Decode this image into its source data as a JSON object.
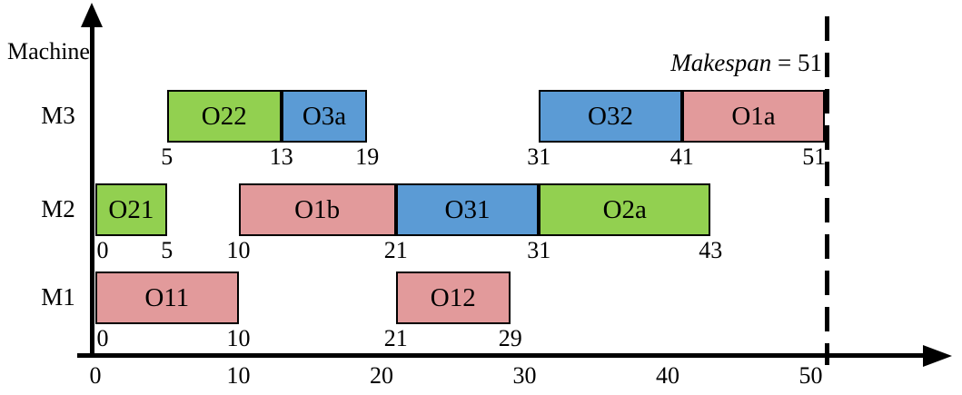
{
  "y_axis_label": "Machine",
  "makespan_annotation": {
    "parts": [
      "Makespan",
      " = 51"
    ]
  },
  "colors": {
    "green": "#92D050",
    "blue": "#5B9BD5",
    "pink": "#E29A9B",
    "axis": "#000000"
  },
  "chart_data": {
    "type": "bar",
    "subtype": "gantt",
    "title": "",
    "xlabel": "",
    "ylabel": "Machine",
    "x_ticks": [
      0,
      10,
      20,
      30,
      40,
      50
    ],
    "xlim": [
      0,
      58
    ],
    "grid": false,
    "legend": false,
    "machines": [
      "M3",
      "M2",
      "M1"
    ],
    "makespan": 51,
    "tasks": [
      {
        "machine": "M3",
        "label": "O22",
        "start": 5,
        "end": 13,
        "color": "green"
      },
      {
        "machine": "M3",
        "label": "O3a",
        "start": 13,
        "end": 19,
        "color": "blue"
      },
      {
        "machine": "M3",
        "label": "O32",
        "start": 31,
        "end": 41,
        "color": "blue"
      },
      {
        "machine": "M3",
        "label": "O1a",
        "start": 41,
        "end": 51,
        "color": "pink"
      },
      {
        "machine": "M2",
        "label": "O21",
        "start": 0,
        "end": 5,
        "color": "green"
      },
      {
        "machine": "M2",
        "label": "O1b",
        "start": 10,
        "end": 21,
        "color": "pink"
      },
      {
        "machine": "M2",
        "label": "O31",
        "start": 21,
        "end": 31,
        "color": "blue"
      },
      {
        "machine": "M2",
        "label": "O2a",
        "start": 31,
        "end": 43,
        "color": "green"
      },
      {
        "machine": "M1",
        "label": "O11",
        "start": 0,
        "end": 10,
        "color": "pink"
      },
      {
        "machine": "M1",
        "label": "O12",
        "start": 21,
        "end": 29,
        "color": "pink"
      }
    ]
  }
}
